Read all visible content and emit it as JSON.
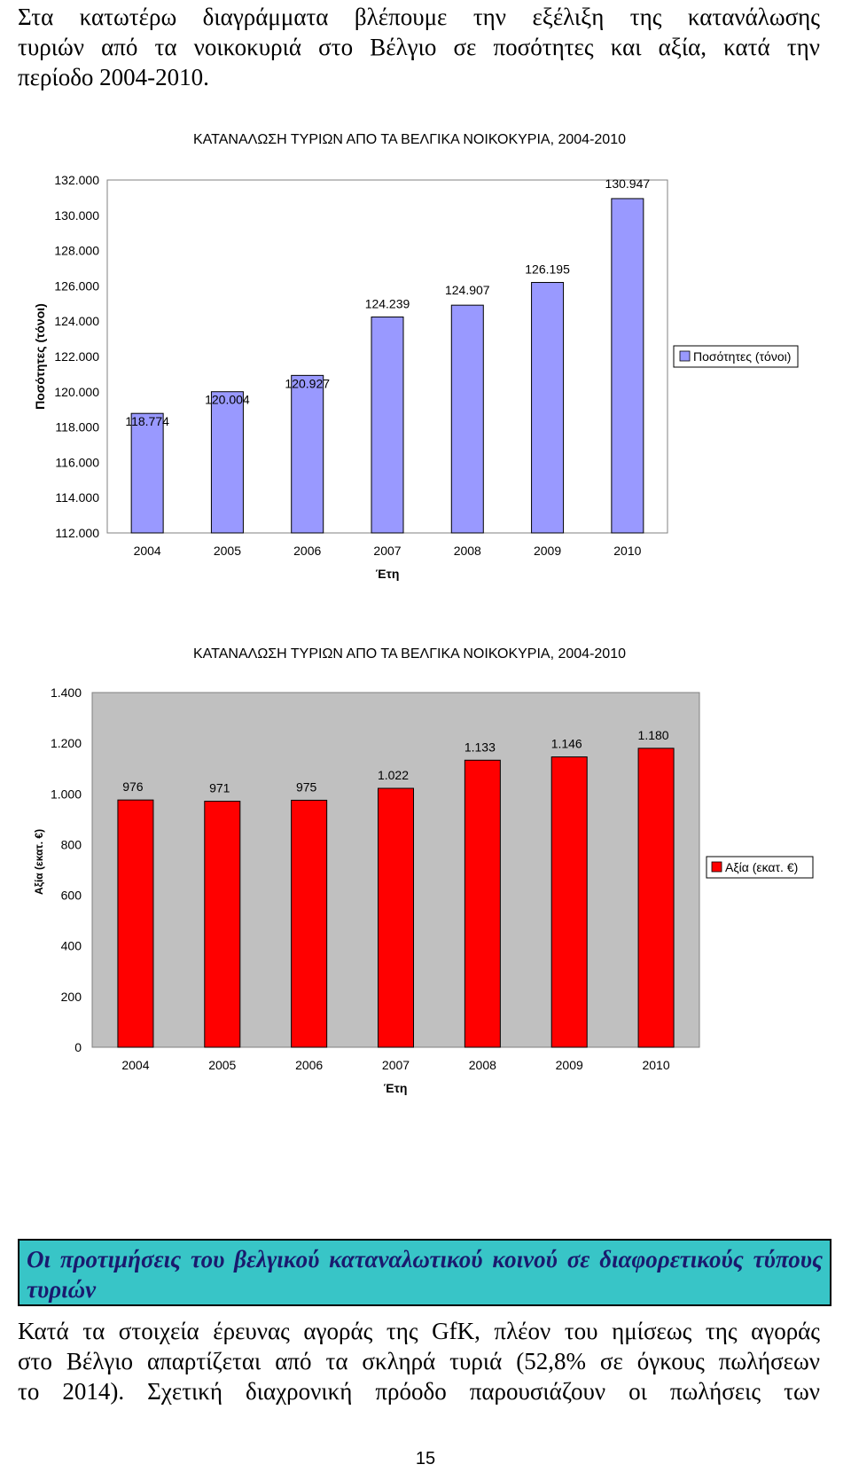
{
  "intro": {
    "lines": [
      "Στα κατωτέρω διαγράμματα βλέπουμε την εξέλιξη της κατανάλωσης",
      "τυριών από τα νοικοκυριά στο Βέλγιο σε ποσότητες και αξία, κατά την",
      "περίοδο 2004-2010."
    ]
  },
  "chart_data": [
    {
      "type": "bar",
      "title": "ΚΑΤΑΝΑΛΩΣΗ ΤΥΡΙΩΝ ΑΠΟ ΤΑ ΒΕΛΓΙΚΑ ΝΟΙΚΟΚΥΡΙΑ, 2004-2010",
      "xlabel": "Έτη",
      "ylabel": "Ποσότητες (τόνοι)",
      "categories": [
        "2004",
        "2005",
        "2006",
        "2007",
        "2008",
        "2009",
        "2010"
      ],
      "values": [
        118774,
        120004,
        120927,
        124239,
        124907,
        126195,
        130947
      ],
      "data_labels": [
        "118.774",
        "120.004",
        "120.927",
        "124.239",
        "124.907",
        "126.195",
        "130.947"
      ],
      "ylim": [
        112000,
        132000
      ],
      "yticks": [
        112000,
        114000,
        116000,
        118000,
        120000,
        122000,
        124000,
        126000,
        128000,
        130000,
        132000
      ],
      "ytick_labels": [
        "112.000",
        "114.000",
        "116.000",
        "118.000",
        "120.000",
        "122.000",
        "124.000",
        "126.000",
        "128.000",
        "130.000",
        "132.000"
      ],
      "legend": "Ποσότητες (τόνοι)",
      "legend_position": "right",
      "bar_color": "#9999ff",
      "plot_background": "#ffffff",
      "grid": false
    },
    {
      "type": "bar",
      "title": "ΚΑΤΑΝΑΛΩΣΗ ΤΥΡΙΩΝ ΑΠΟ ΤΑ ΒΕΛΓΙΚΑ ΝΟΙΚΟΚΥΡΙΑ, 2004-2010",
      "xlabel": "Έτη",
      "ylabel": "Αξία (εκατ. €)",
      "categories": [
        "2004",
        "2005",
        "2006",
        "2007",
        "2008",
        "2009",
        "2010"
      ],
      "values": [
        976,
        971,
        975,
        1022,
        1133,
        1146,
        1180
      ],
      "data_labels": [
        "976",
        "971",
        "975",
        "1.022",
        "1.133",
        "1.146",
        "1.180"
      ],
      "ylim": [
        0,
        1400
      ],
      "yticks": [
        0,
        200,
        400,
        600,
        800,
        1000,
        1200,
        1400
      ],
      "ytick_labels": [
        "0",
        "200",
        "400",
        "600",
        "800",
        "1.000",
        "1.200",
        "1.400"
      ],
      "legend": "Αξία (εκατ. €)",
      "legend_position": "right",
      "bar_color": "#ff0000",
      "plot_background": "#c0c0c0",
      "grid": false
    }
  ],
  "section": {
    "heading": "Οι προτιμήσεις του βελγικού καταναλωτικού κοινού σε διαφορετικούς τύπους τυριών"
  },
  "body": {
    "lines": [
      "Κατά τα στοιχεία έρευνας αγοράς της GfK, πλέον του ημίσεως της αγοράς",
      "στο Βέλγιο απαρτίζεται από τα σκληρά τυριά (52,8% σε όγκους πωλήσεων",
      "το 2014). Σχετική διαχρονική πρόοδο παρουσιάζουν οι πωλήσεις των"
    ]
  },
  "page_number": "15"
}
